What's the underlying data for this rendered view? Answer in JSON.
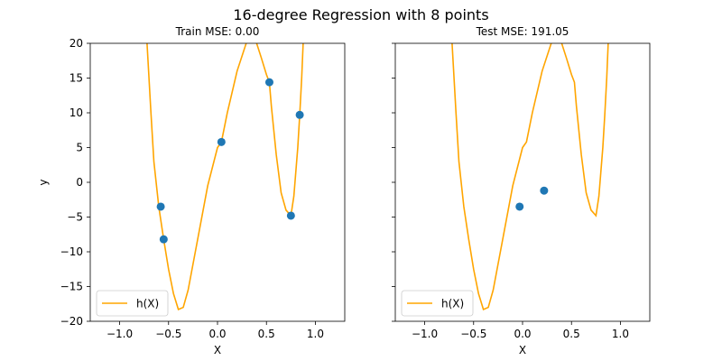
{
  "suptitle": "16-degree Regression with 8 points",
  "colors": {
    "curve": "#ffa500",
    "points": "#1f77b4"
  },
  "chart_data": [
    {
      "type": "scatter+line",
      "title": "Train MSE: 0.00",
      "xlabel": "X",
      "ylabel": "y",
      "xlim": [
        -1.3,
        1.3
      ],
      "ylim": [
        -20,
        20
      ],
      "xticks": [
        -1.0,
        -0.5,
        0.0,
        0.5,
        1.0
      ],
      "xtick_labels": [
        "−1.0",
        "−0.5",
        "0.0",
        "0.5",
        "1.0"
      ],
      "yticks": [
        -20,
        -15,
        -10,
        -5,
        0,
        5,
        10,
        15,
        20
      ],
      "ytick_labels": [
        "−20",
        "−15",
        "−10",
        "−5",
        "0",
        "5",
        "10",
        "15",
        "20"
      ],
      "legend": {
        "label": "h(X)",
        "placement": "lower-left"
      },
      "points": [
        {
          "x": -0.58,
          "y": -3.5
        },
        {
          "x": -0.55,
          "y": -8.2
        },
        {
          "x": 0.04,
          "y": 5.8
        },
        {
          "x": 0.53,
          "y": 14.4
        },
        {
          "x": 0.75,
          "y": -4.8
        },
        {
          "x": 0.84,
          "y": 9.7
        }
      ],
      "curve": {
        "name": "h(X)",
        "x": [
          -0.72,
          -0.68,
          -0.65,
          -0.6,
          -0.55,
          -0.5,
          -0.45,
          -0.4,
          -0.35,
          -0.3,
          -0.2,
          -0.1,
          0.0,
          0.04,
          0.1,
          0.2,
          0.3,
          0.35,
          0.4,
          0.45,
          0.5,
          0.53,
          0.55,
          0.6,
          0.65,
          0.7,
          0.75,
          0.78,
          0.82,
          0.84,
          0.86,
          0.875
        ],
        "y": [
          20.0,
          10.0,
          3.0,
          -3.5,
          -8.2,
          -12.5,
          -16.0,
          -18.3,
          -18.0,
          -15.5,
          -8.0,
          -0.5,
          5.0,
          5.8,
          10.0,
          16.0,
          20.3,
          21.0,
          20.0,
          17.8,
          15.5,
          14.4,
          11.0,
          4.0,
          -1.5,
          -4.0,
          -4.8,
          -2.0,
          5.0,
          9.7,
          15.0,
          20.0
        ]
      }
    },
    {
      "type": "scatter+line",
      "title": "Test MSE: 191.05",
      "xlabel": "X",
      "ylabel": "",
      "xlim": [
        -1.3,
        1.3
      ],
      "ylim": [
        -20,
        20
      ],
      "xticks": [
        -1.0,
        -0.5,
        0.0,
        0.5,
        1.0
      ],
      "xtick_labels": [
        "−1.0",
        "−0.5",
        "0.0",
        "0.5",
        "1.0"
      ],
      "yticks": [
        -20,
        -15,
        -10,
        -5,
        0,
        5,
        10,
        15,
        20
      ],
      "ytick_labels": [],
      "legend": {
        "label": "h(X)",
        "placement": "lower-left"
      },
      "points": [
        {
          "x": -0.03,
          "y": -3.5
        },
        {
          "x": 0.22,
          "y": -1.2
        }
      ],
      "curve": {
        "name": "h(X)",
        "x": [
          -0.72,
          -0.68,
          -0.65,
          -0.6,
          -0.55,
          -0.5,
          -0.45,
          -0.4,
          -0.35,
          -0.3,
          -0.2,
          -0.1,
          0.0,
          0.04,
          0.1,
          0.2,
          0.3,
          0.35,
          0.4,
          0.45,
          0.5,
          0.53,
          0.55,
          0.6,
          0.65,
          0.7,
          0.75,
          0.78,
          0.82,
          0.84,
          0.86,
          0.875
        ],
        "y": [
          20.0,
          10.0,
          3.0,
          -3.5,
          -8.2,
          -12.5,
          -16.0,
          -18.3,
          -18.0,
          -15.5,
          -8.0,
          -0.5,
          5.0,
          5.8,
          10.0,
          16.0,
          20.3,
          21.0,
          20.0,
          17.8,
          15.5,
          14.4,
          11.0,
          4.0,
          -1.5,
          -4.0,
          -4.8,
          -2.0,
          5.0,
          9.7,
          15.0,
          20.0
        ]
      }
    }
  ]
}
